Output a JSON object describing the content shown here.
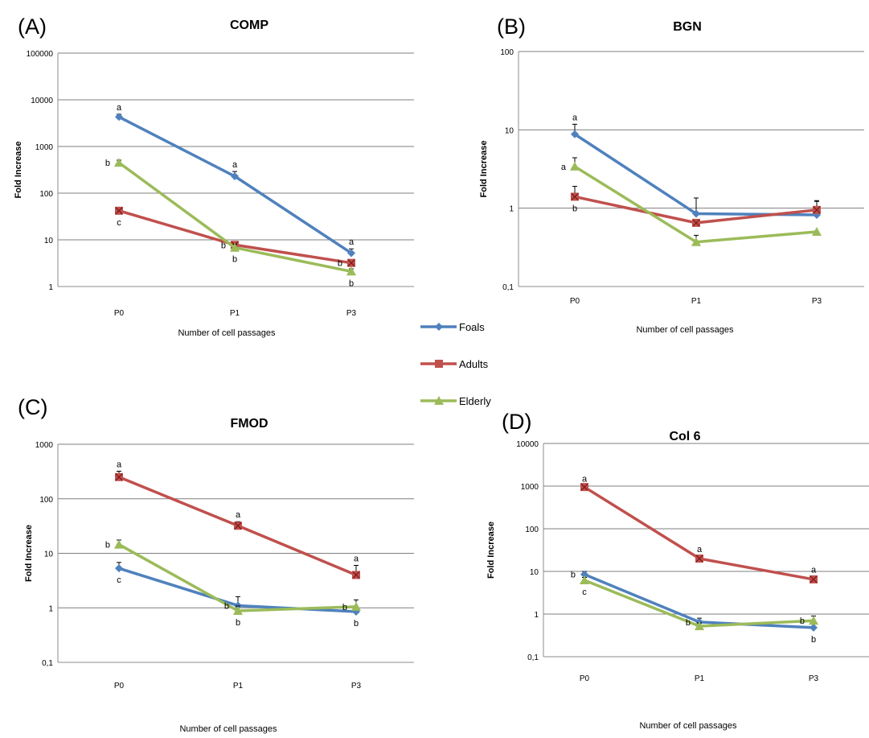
{
  "series_styles": {
    "Foals": {
      "color": "#4F81BD",
      "marker": "diamond"
    },
    "Adults": {
      "color": "#C0504D",
      "marker": "square"
    },
    "Elderly": {
      "color": "#9BBB59",
      "marker": "triangle"
    }
  },
  "legend": {
    "placement": "center",
    "entries": [
      "Foals",
      "Adults",
      "Elderly"
    ]
  },
  "chart_data": [
    {
      "type": "line",
      "panel_label": "(A)",
      "title": "COMP",
      "xlabel": "Number of cell passages",
      "ylabel": "Fold Increase",
      "yscale": "log",
      "ylim": [
        1,
        100000
      ],
      "yticks": [
        "1",
        "10",
        "100",
        "1000",
        "10000",
        "100000"
      ],
      "categories": [
        "P0",
        "P1",
        "P3"
      ],
      "grid": true,
      "series": [
        {
          "name": "Foals",
          "values": [
            4300,
            230,
            5.2
          ],
          "err": [
            600,
            60,
            1.2
          ],
          "labels": [
            "a",
            "a",
            "a"
          ]
        },
        {
          "name": "Adults",
          "values": [
            42,
            7.8,
            3.2
          ],
          "err": [
            6,
            1.2,
            0.6
          ],
          "labels": [
            "c",
            "b",
            "b"
          ]
        },
        {
          "name": "Elderly",
          "values": [
            450,
            6.8,
            2.1
          ],
          "err": [
            60,
            1.2,
            0.3
          ],
          "labels": [
            "b",
            "b",
            "b"
          ]
        }
      ]
    },
    {
      "type": "line",
      "panel_label": "(B)",
      "title": "BGN",
      "xlabel": "Number of cell passages",
      "ylabel": "Fold Increase",
      "yscale": "log",
      "ylim": [
        0.1,
        100
      ],
      "yticks": [
        "0,1",
        "1",
        "10",
        "100"
      ],
      "categories": [
        "P0",
        "P1",
        "P3"
      ],
      "grid": true,
      "series": [
        {
          "name": "Foals",
          "values": [
            8.8,
            0.85,
            0.82
          ],
          "err": [
            3,
            0.5,
            0.4
          ],
          "labels": [
            "a",
            "",
            ""
          ]
        },
        {
          "name": "Adults",
          "values": [
            1.4,
            0.65,
            0.95
          ],
          "err": [
            0.5,
            0,
            0.3
          ],
          "labels": [
            "b",
            "",
            ""
          ]
        },
        {
          "name": "Elderly",
          "values": [
            3.4,
            0.37,
            0.5
          ],
          "err": [
            1,
            0.08,
            0
          ],
          "labels": [
            "a",
            "",
            ""
          ]
        }
      ]
    },
    {
      "type": "line",
      "panel_label": "(C)",
      "title": "FMOD",
      "xlabel": "Number of cell passages",
      "ylabel": "Fold Increase",
      "yscale": "log",
      "ylim": [
        0.1,
        1000
      ],
      "yticks": [
        "0,1",
        "1",
        "10",
        "100",
        "1000"
      ],
      "categories": [
        "P0",
        "P1",
        "P3"
      ],
      "grid": true,
      "series": [
        {
          "name": "Foals",
          "values": [
            5.3,
            1.1,
            0.85
          ],
          "err": [
            1.5,
            0.5,
            0.2
          ],
          "labels": [
            "c",
            "b",
            "b"
          ]
        },
        {
          "name": "Adults",
          "values": [
            250,
            32,
            4
          ],
          "err": [
            70,
            6,
            2
          ],
          "labels": [
            "a",
            "a",
            "a"
          ]
        },
        {
          "name": "Elderly",
          "values": [
            14.5,
            0.88,
            1.05
          ],
          "err": [
            3,
            0.2,
            0.35
          ],
          "labels": [
            "b",
            "b",
            "b"
          ]
        }
      ]
    },
    {
      "type": "line",
      "panel_label": "(D)",
      "title": "Col 6",
      "xlabel": "Number of cell passages",
      "ylabel": "Fold Increase",
      "yscale": "log",
      "ylim": [
        0.1,
        10000
      ],
      "yticks": [
        "0,1",
        "1",
        "10",
        "100",
        "1000",
        "10000"
      ],
      "categories": [
        "P0",
        "P1",
        "P3"
      ],
      "grid": true,
      "series": [
        {
          "name": "Foals",
          "values": [
            8.5,
            0.65,
            0.48
          ],
          "err": [
            1.5,
            0.15,
            0.1
          ],
          "labels": [
            "b",
            "b",
            "b"
          ]
        },
        {
          "name": "Adults",
          "values": [
            950,
            20,
            6.5
          ],
          "err": [
            80,
            3,
            1
          ],
          "labels": [
            "a",
            "a",
            "a"
          ]
        },
        {
          "name": "Elderly",
          "values": [
            6.2,
            0.52,
            0.7
          ],
          "err": [
            1,
            0.1,
            0.2
          ],
          "labels": [
            "c",
            "",
            "b"
          ]
        }
      ]
    }
  ]
}
